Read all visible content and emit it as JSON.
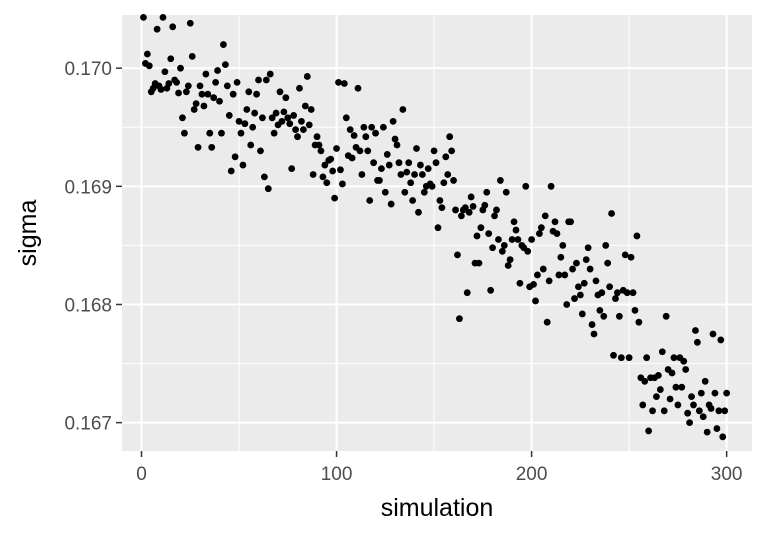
{
  "chart_data": {
    "type": "scatter",
    "title": "",
    "xlabel": "simulation",
    "ylabel": "sigma",
    "xlim": [
      -10,
      313
    ],
    "ylim": [
      0.16676,
      0.17045
    ],
    "x_ticks": [
      0,
      100,
      200,
      300
    ],
    "x_tick_labels": [
      "0",
      "100",
      "200",
      "300"
    ],
    "y_ticks": [
      0.167,
      0.168,
      0.169,
      0.17
    ],
    "y_tick_labels": [
      "0.167",
      "0.168",
      "0.169",
      "0.170"
    ],
    "grid": true,
    "panel_background": "#ebebeb",
    "grid_color": "#ffffff",
    "point_color": "#000000",
    "legend": "none",
    "series": [
      {
        "points": [
          [
            1,
            0.17043
          ],
          [
            2,
            0.17004
          ],
          [
            3,
            0.17012
          ],
          [
            4,
            0.17002
          ],
          [
            5,
            0.1698
          ],
          [
            6,
            0.16983
          ],
          [
            7,
            0.16987
          ],
          [
            8,
            0.17033
          ],
          [
            9,
            0.16985
          ],
          [
            10,
            0.16982
          ],
          [
            11,
            0.17043
          ],
          [
            12,
            0.16997
          ],
          [
            13,
            0.16983
          ],
          [
            14,
            0.16987
          ],
          [
            15,
            0.17008
          ],
          [
            16,
            0.17035
          ],
          [
            17,
            0.1699
          ],
          [
            18,
            0.16988
          ],
          [
            19,
            0.16979
          ],
          [
            20,
            0.17
          ],
          [
            21,
            0.16958
          ],
          [
            22,
            0.16945
          ],
          [
            23,
            0.1698
          ],
          [
            24,
            0.16985
          ],
          [
            25,
            0.17038
          ],
          [
            26,
            0.1701
          ],
          [
            27,
            0.16965
          ],
          [
            28,
            0.1697
          ],
          [
            29,
            0.16933
          ],
          [
            30,
            0.16985
          ],
          [
            31,
            0.16978
          ],
          [
            32,
            0.16968
          ],
          [
            33,
            0.16995
          ],
          [
            34,
            0.16978
          ],
          [
            35,
            0.16945
          ],
          [
            36,
            0.16933
          ],
          [
            37,
            0.16975
          ],
          [
            38,
            0.16988
          ],
          [
            39,
            0.16998
          ],
          [
            40,
            0.16972
          ],
          [
            41,
            0.16945
          ],
          [
            42,
            0.1702
          ],
          [
            43,
            0.17003
          ],
          [
            44,
            0.16985
          ],
          [
            45,
            0.1696
          ],
          [
            46,
            0.16913
          ],
          [
            47,
            0.16978
          ],
          [
            48,
            0.16925
          ],
          [
            49,
            0.16988
          ],
          [
            50,
            0.16955
          ],
          [
            51,
            0.16945
          ],
          [
            52,
            0.16918
          ],
          [
            53,
            0.16953
          ],
          [
            54,
            0.16965
          ],
          [
            55,
            0.1698
          ],
          [
            56,
            0.16935
          ],
          [
            57,
            0.1695
          ],
          [
            58,
            0.16962
          ],
          [
            59,
            0.16978
          ],
          [
            60,
            0.1699
          ],
          [
            61,
            0.1693
          ],
          [
            62,
            0.16958
          ],
          [
            63,
            0.16908
          ],
          [
            64,
            0.1699
          ],
          [
            65,
            0.16898
          ],
          [
            66,
            0.16995
          ],
          [
            67,
            0.16958
          ],
          [
            68,
            0.16945
          ],
          [
            69,
            0.16962
          ],
          [
            70,
            0.16952
          ],
          [
            71,
            0.1698
          ],
          [
            72,
            0.16955
          ],
          [
            73,
            0.16963
          ],
          [
            74,
            0.16975
          ],
          [
            75,
            0.16958
          ],
          [
            76,
            0.16953
          ],
          [
            77,
            0.16915
          ],
          [
            78,
            0.1696
          ],
          [
            79,
            0.16948
          ],
          [
            80,
            0.16942
          ],
          [
            81,
            0.16983
          ],
          [
            82,
            0.16955
          ],
          [
            83,
            0.16948
          ],
          [
            84,
            0.16968
          ],
          [
            85,
            0.16993
          ],
          [
            86,
            0.16952
          ],
          [
            87,
            0.16965
          ],
          [
            88,
            0.1691
          ],
          [
            89,
            0.16935
          ],
          [
            90,
            0.16942
          ],
          [
            91,
            0.16935
          ],
          [
            92,
            0.1693
          ],
          [
            93,
            0.16908
          ],
          [
            94,
            0.16918
          ],
          [
            95,
            0.16903
          ],
          [
            96,
            0.16922
          ],
          [
            97,
            0.16923
          ],
          [
            98,
            0.16913
          ],
          [
            99,
            0.1689
          ],
          [
            100,
            0.16932
          ],
          [
            101,
            0.16988
          ],
          [
            102,
            0.16914
          ],
          [
            103,
            0.16902
          ],
          [
            104,
            0.16987
          ],
          [
            105,
            0.16958
          ],
          [
            106,
            0.16926
          ],
          [
            107,
            0.16948
          ],
          [
            108,
            0.16924
          ],
          [
            109,
            0.16943
          ],
          [
            110,
            0.16933
          ],
          [
            111,
            0.16983
          ],
          [
            112,
            0.1693
          ],
          [
            113,
            0.1691
          ],
          [
            114,
            0.1695
          ],
          [
            115,
            0.16942
          ],
          [
            116,
            0.1693
          ],
          [
            117,
            0.16888
          ],
          [
            118,
            0.1695
          ],
          [
            119,
            0.1692
          ],
          [
            120,
            0.16945
          ],
          [
            121,
            0.16905
          ],
          [
            122,
            0.16905
          ],
          [
            123,
            0.16915
          ],
          [
            124,
            0.1695
          ],
          [
            125,
            0.16895
          ],
          [
            126,
            0.16927
          ],
          [
            127,
            0.16918
          ],
          [
            128,
            0.16885
          ],
          [
            129,
            0.16955
          ],
          [
            130,
            0.1694
          ],
          [
            131,
            0.16935
          ],
          [
            132,
            0.1692
          ],
          [
            133,
            0.1691
          ],
          [
            134,
            0.16965
          ],
          [
            135,
            0.16895
          ],
          [
            136,
            0.16912
          ],
          [
            137,
            0.1692
          ],
          [
            138,
            0.16903
          ],
          [
            139,
            0.16888
          ],
          [
            140,
            0.1691
          ],
          [
            141,
            0.16932
          ],
          [
            142,
            0.16878
          ],
          [
            143,
            0.16918
          ],
          [
            144,
            0.1691
          ],
          [
            145,
            0.16895
          ],
          [
            146,
            0.169
          ],
          [
            147,
            0.16915
          ],
          [
            148,
            0.16902
          ],
          [
            149,
            0.169
          ],
          [
            150,
            0.1693
          ],
          [
            151,
            0.1692
          ],
          [
            152,
            0.16865
          ],
          [
            153,
            0.16888
          ],
          [
            154,
            0.16882
          ],
          [
            155,
            0.16903
          ],
          [
            156,
            0.16925
          ],
          [
            157,
            0.1691
          ],
          [
            158,
            0.16942
          ],
          [
            159,
            0.1693
          ],
          [
            160,
            0.16905
          ],
          [
            161,
            0.1688
          ],
          [
            162,
            0.16842
          ],
          [
            163,
            0.16788
          ],
          [
            164,
            0.16875
          ],
          [
            165,
            0.1688
          ],
          [
            166,
            0.16882
          ],
          [
            167,
            0.1681
          ],
          [
            168,
            0.16878
          ],
          [
            169,
            0.16891
          ],
          [
            170,
            0.16883
          ],
          [
            171,
            0.16835
          ],
          [
            172,
            0.16858
          ],
          [
            173,
            0.16835
          ],
          [
            174,
            0.16865
          ],
          [
            175,
            0.1688
          ],
          [
            176,
            0.16884
          ],
          [
            177,
            0.16895
          ],
          [
            178,
            0.1686
          ],
          [
            179,
            0.16812
          ],
          [
            180,
            0.16848
          ],
          [
            181,
            0.16875
          ],
          [
            182,
            0.1688
          ],
          [
            183,
            0.16855
          ],
          [
            184,
            0.16905
          ],
          [
            185,
            0.16845
          ],
          [
            186,
            0.1685
          ],
          [
            187,
            0.16895
          ],
          [
            188,
            0.16833
          ],
          [
            189,
            0.16838
          ],
          [
            190,
            0.16855
          ],
          [
            191,
            0.1687
          ],
          [
            192,
            0.16863
          ],
          [
            193,
            0.16855
          ],
          [
            194,
            0.16818
          ],
          [
            195,
            0.1685
          ],
          [
            196,
            0.16848
          ],
          [
            197,
            0.169
          ],
          [
            198,
            0.16845
          ],
          [
            199,
            0.16815
          ],
          [
            200,
            0.16855
          ],
          [
            201,
            0.16817
          ],
          [
            202,
            0.16803
          ],
          [
            203,
            0.16825
          ],
          [
            204,
            0.1686
          ],
          [
            205,
            0.16865
          ],
          [
            206,
            0.1683
          ],
          [
            207,
            0.16875
          ],
          [
            208,
            0.16785
          ],
          [
            209,
            0.1682
          ],
          [
            210,
            0.169
          ],
          [
            211,
            0.16862
          ],
          [
            212,
            0.1687
          ],
          [
            213,
            0.1686
          ],
          [
            214,
            0.16825
          ],
          [
            215,
            0.1684
          ],
          [
            216,
            0.1685
          ],
          [
            217,
            0.16825
          ],
          [
            218,
            0.168
          ],
          [
            219,
            0.1687
          ],
          [
            220,
            0.1687
          ],
          [
            221,
            0.1683
          ],
          [
            222,
            0.16805
          ],
          [
            223,
            0.16835
          ],
          [
            224,
            0.16815
          ],
          [
            225,
            0.16808
          ],
          [
            226,
            0.16792
          ],
          [
            227,
            0.16818
          ],
          [
            228,
            0.16838
          ],
          [
            229,
            0.16848
          ],
          [
            230,
            0.1683
          ],
          [
            231,
            0.16783
          ],
          [
            232,
            0.16775
          ],
          [
            233,
            0.1682
          ],
          [
            234,
            0.16808
          ],
          [
            235,
            0.16795
          ],
          [
            236,
            0.1681
          ],
          [
            237,
            0.1679
          ],
          [
            238,
            0.1685
          ],
          [
            239,
            0.16835
          ],
          [
            240,
            0.16815
          ],
          [
            241,
            0.16877
          ],
          [
            242,
            0.16757
          ],
          [
            243,
            0.16805
          ],
          [
            244,
            0.1681
          ],
          [
            245,
            0.1679
          ],
          [
            246,
            0.16755
          ],
          [
            247,
            0.16812
          ],
          [
            248,
            0.16842
          ],
          [
            249,
            0.1681
          ],
          [
            250,
            0.16755
          ],
          [
            251,
            0.1684
          ],
          [
            252,
            0.1681
          ],
          [
            253,
            0.16795
          ],
          [
            254,
            0.16858
          ],
          [
            255,
            0.16785
          ],
          [
            256,
            0.16738
          ],
          [
            257,
            0.16715
          ],
          [
            258,
            0.16735
          ],
          [
            259,
            0.16755
          ],
          [
            260,
            0.16693
          ],
          [
            261,
            0.16738
          ],
          [
            262,
            0.1671
          ],
          [
            263,
            0.16738
          ],
          [
            264,
            0.16722
          ],
          [
            265,
            0.1674
          ],
          [
            266,
            0.16728
          ],
          [
            267,
            0.1676
          ],
          [
            268,
            0.1671
          ],
          [
            269,
            0.1679
          ],
          [
            270,
            0.16745
          ],
          [
            271,
            0.1672
          ],
          [
            272,
            0.16742
          ],
          [
            273,
            0.16755
          ],
          [
            274,
            0.1673
          ],
          [
            275,
            0.16715
          ],
          [
            276,
            0.16755
          ],
          [
            277,
            0.1673
          ],
          [
            278,
            0.16752
          ],
          [
            279,
            0.16745
          ],
          [
            280,
            0.16708
          ],
          [
            281,
            0.167
          ],
          [
            282,
            0.16722
          ],
          [
            283,
            0.16715
          ],
          [
            284,
            0.16778
          ],
          [
            285,
            0.16768
          ],
          [
            286,
            0.1671
          ],
          [
            287,
            0.16725
          ],
          [
            288,
            0.16705
          ],
          [
            289,
            0.16735
          ],
          [
            290,
            0.16692
          ],
          [
            291,
            0.16715
          ],
          [
            292,
            0.16712
          ],
          [
            293,
            0.16775
          ],
          [
            294,
            0.16725
          ],
          [
            295,
            0.16695
          ],
          [
            296,
            0.1671
          ],
          [
            297,
            0.1677
          ],
          [
            298,
            0.16688
          ],
          [
            299,
            0.1671
          ],
          [
            300,
            0.16725
          ]
        ]
      }
    ]
  }
}
